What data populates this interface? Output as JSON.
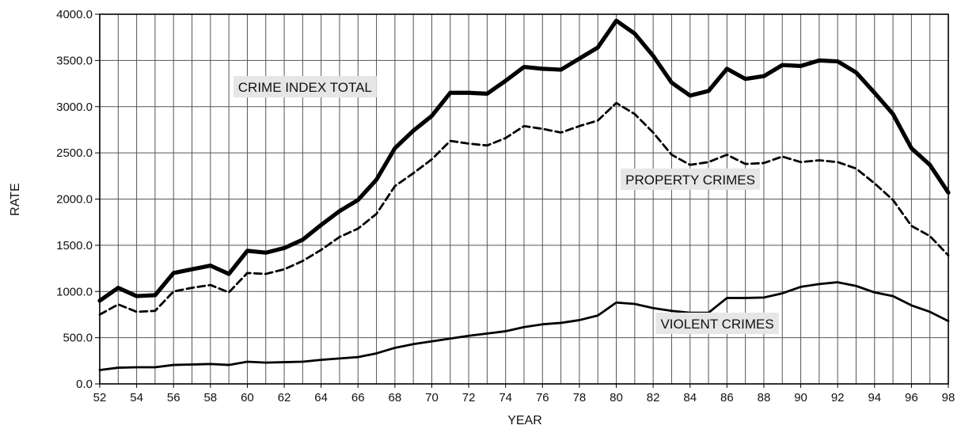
{
  "chart_data": {
    "type": "line",
    "title": "",
    "xlabel": "YEAR",
    "ylabel": "RATE",
    "xlim": [
      52,
      98
    ],
    "ylim": [
      0,
      4000
    ],
    "x_tick_labels": [
      "52",
      "54",
      "56",
      "58",
      "60",
      "62",
      "64",
      "66",
      "68",
      "70",
      "72",
      "74",
      "76",
      "78",
      "80",
      "82",
      "84",
      "86",
      "88",
      "90",
      "92",
      "94",
      "96",
      "98"
    ],
    "y_tick_labels": [
      "0.0",
      "500.0",
      "1000.0",
      "1500.0",
      "2000.0",
      "2500.0",
      "3000.0",
      "3500.0",
      "4000.0"
    ],
    "grid": true,
    "x": [
      52,
      53,
      54,
      55,
      56,
      57,
      58,
      59,
      60,
      61,
      62,
      63,
      64,
      65,
      66,
      67,
      68,
      69,
      70,
      71,
      72,
      73,
      74,
      75,
      76,
      77,
      78,
      79,
      80,
      81,
      82,
      83,
      84,
      85,
      86,
      87,
      88,
      89,
      90,
      91,
      92,
      93,
      94,
      95,
      96,
      97,
      98
    ],
    "series": [
      {
        "name": "CRIME INDEX TOTAL",
        "style": "thick",
        "values": [
          900,
          1040,
          950,
          960,
          1200,
          1240,
          1280,
          1190,
          1440,
          1420,
          1470,
          1560,
          1720,
          1870,
          1990,
          2210,
          2550,
          2740,
          2900,
          3150,
          3150,
          3140,
          3280,
          3430,
          3410,
          3400,
          3520,
          3640,
          3930,
          3790,
          3550,
          3260,
          3120,
          3170,
          3410,
          3300,
          3330,
          3450,
          3440,
          3500,
          3490,
          3370,
          3150,
          2920,
          2550,
          2370,
          2070
        ]
      },
      {
        "name": "PROPERTY CRIMES",
        "style": "dashed",
        "values": [
          750,
          860,
          780,
          790,
          1000,
          1040,
          1070,
          990,
          1200,
          1190,
          1240,
          1330,
          1450,
          1590,
          1680,
          1840,
          2140,
          2280,
          2430,
          2630,
          2600,
          2580,
          2660,
          2790,
          2760,
          2720,
          2790,
          2850,
          3040,
          2920,
          2720,
          2480,
          2370,
          2400,
          2480,
          2380,
          2390,
          2460,
          2400,
          2420,
          2400,
          2330,
          2170,
          1990,
          1710,
          1600,
          1390
        ]
      },
      {
        "name": "VIOLENT CRIMES",
        "style": "medium",
        "values": [
          150,
          175,
          180,
          180,
          205,
          210,
          215,
          205,
          240,
          230,
          235,
          240,
          260,
          275,
          290,
          330,
          390,
          430,
          460,
          490,
          520,
          545,
          570,
          615,
          645,
          660,
          690,
          740,
          880,
          865,
          820,
          790,
          770,
          770,
          930,
          930,
          935,
          980,
          1050,
          1080,
          1100,
          1060,
          990,
          950,
          850,
          780,
          680
        ]
      }
    ],
    "annotations": [
      {
        "text": "CRIME INDEX TOTAL",
        "x": 59.5,
        "y": 3160
      },
      {
        "text": "PROPERTY CRIMES",
        "x": 80.5,
        "y": 2160
      },
      {
        "text": "VIOLENT CRIMES",
        "x": 82.4,
        "y": 600
      }
    ],
    "colors": {
      "line": "#000000",
      "grid": "#555555",
      "label_bg": "#e6e6e6"
    }
  }
}
